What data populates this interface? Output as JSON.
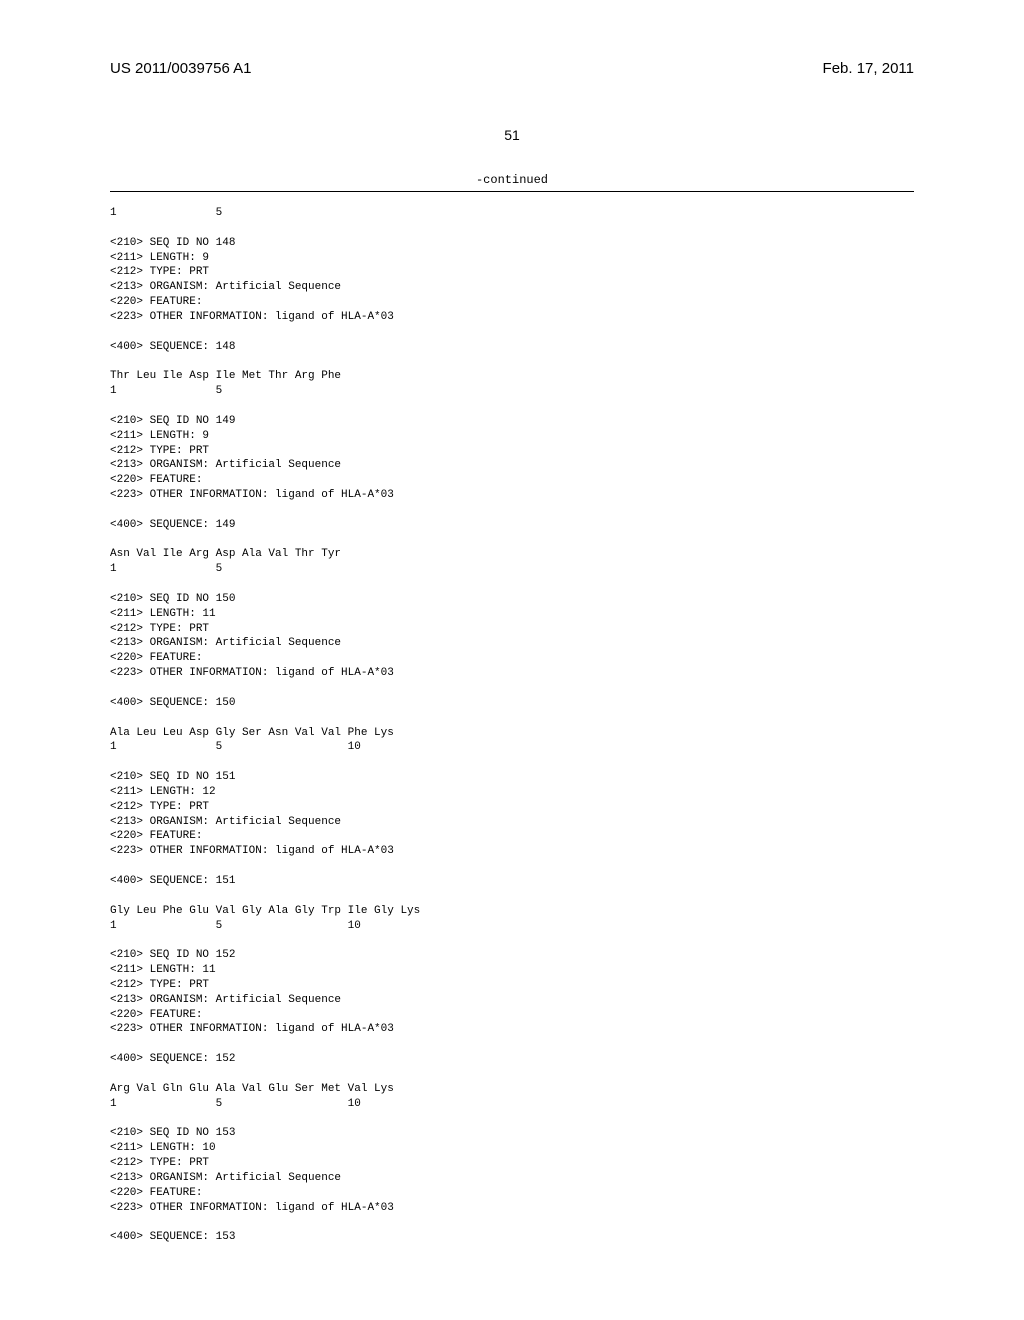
{
  "header": {
    "left": "US 2011/0039756 A1",
    "right": "Feb. 17, 2011"
  },
  "page_number": "51",
  "continued_label": "-continued",
  "blocks": [
    {
      "numline": "1               5"
    },
    {
      "meta": [
        "<210> SEQ ID NO 148",
        "<211> LENGTH: 9",
        "<212> TYPE: PRT",
        "<213> ORGANISM: Artificial Sequence",
        "<220> FEATURE:",
        "<223> OTHER INFORMATION: ligand of HLA-A*03"
      ],
      "seq_label": "<400> SEQUENCE: 148",
      "seq": "Thr Leu Ile Asp Ile Met Thr Arg Phe",
      "numline": "1               5"
    },
    {
      "meta": [
        "<210> SEQ ID NO 149",
        "<211> LENGTH: 9",
        "<212> TYPE: PRT",
        "<213> ORGANISM: Artificial Sequence",
        "<220> FEATURE:",
        "<223> OTHER INFORMATION: ligand of HLA-A*03"
      ],
      "seq_label": "<400> SEQUENCE: 149",
      "seq": "Asn Val Ile Arg Asp Ala Val Thr Tyr",
      "numline": "1               5"
    },
    {
      "meta": [
        "<210> SEQ ID NO 150",
        "<211> LENGTH: 11",
        "<212> TYPE: PRT",
        "<213> ORGANISM: Artificial Sequence",
        "<220> FEATURE:",
        "<223> OTHER INFORMATION: ligand of HLA-A*03"
      ],
      "seq_label": "<400> SEQUENCE: 150",
      "seq": "Ala Leu Leu Asp Gly Ser Asn Val Val Phe Lys",
      "numline": "1               5                   10"
    },
    {
      "meta": [
        "<210> SEQ ID NO 151",
        "<211> LENGTH: 12",
        "<212> TYPE: PRT",
        "<213> ORGANISM: Artificial Sequence",
        "<220> FEATURE:",
        "<223> OTHER INFORMATION: ligand of HLA-A*03"
      ],
      "seq_label": "<400> SEQUENCE: 151",
      "seq": "Gly Leu Phe Glu Val Gly Ala Gly Trp Ile Gly Lys",
      "numline": "1               5                   10"
    },
    {
      "meta": [
        "<210> SEQ ID NO 152",
        "<211> LENGTH: 11",
        "<212> TYPE: PRT",
        "<213> ORGANISM: Artificial Sequence",
        "<220> FEATURE:",
        "<223> OTHER INFORMATION: ligand of HLA-A*03"
      ],
      "seq_label": "<400> SEQUENCE: 152",
      "seq": "Arg Val Gln Glu Ala Val Glu Ser Met Val Lys",
      "numline": "1               5                   10"
    },
    {
      "meta": [
        "<210> SEQ ID NO 153",
        "<211> LENGTH: 10",
        "<212> TYPE: PRT",
        "<213> ORGANISM: Artificial Sequence",
        "<220> FEATURE:",
        "<223> OTHER INFORMATION: ligand of HLA-A*03"
      ],
      "seq_label": "<400> SEQUENCE: 153"
    }
  ]
}
